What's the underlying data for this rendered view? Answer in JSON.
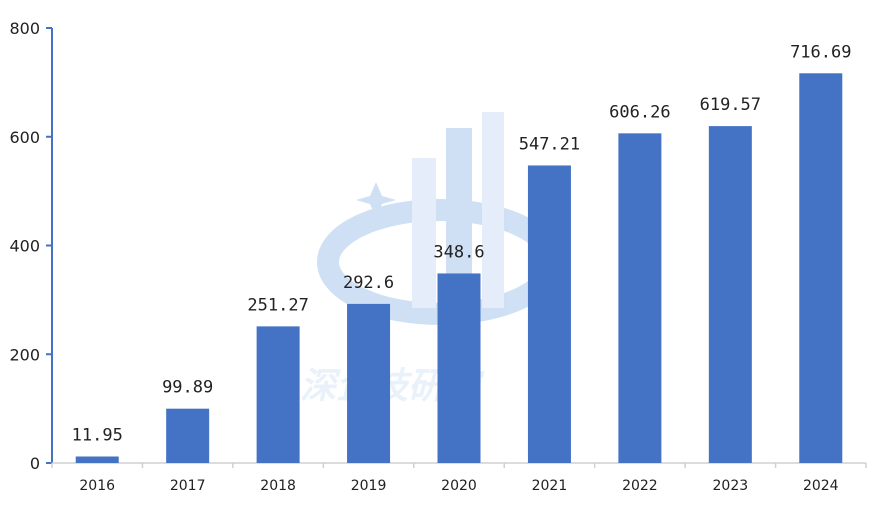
{
  "chart_data": {
    "type": "bar",
    "title": "",
    "xlabel": "",
    "ylabel": "",
    "ylim": [
      0,
      800
    ],
    "yticks": [
      0,
      200,
      400,
      600,
      800
    ],
    "categories": [
      "2016",
      "2017",
      "2018",
      "2019",
      "2020",
      "2021",
      "2022",
      "2023",
      "2024"
    ],
    "values": [
      11.95,
      99.89,
      251.27,
      292.6,
      348.6,
      547.21,
      606.26,
      619.57,
      716.69
    ],
    "data_labels": [
      "11.95",
      "99.89",
      "251.27",
      "292.6",
      "348.6",
      "547.21",
      "606.26",
      "619.57",
      "716.69"
    ],
    "grid": false,
    "legend": "none",
    "bar_color": "#4472c4",
    "axis_color": "#4472c4"
  },
  "watermark": {
    "text": "深企技研究",
    "colors": {
      "light": "#cfe0f5",
      "mid": "#a9c8ec",
      "dark": "#4a90d9"
    }
  }
}
